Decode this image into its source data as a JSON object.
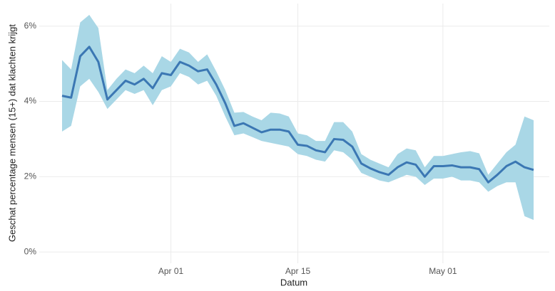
{
  "chart_data": {
    "type": "line",
    "x_label": "Datum",
    "y_label": "Geschat percentage mensen (15+) dat klachten krijgt",
    "x": [
      "Mar 20",
      "Mar 21",
      "Mar 22",
      "Mar 23",
      "Mar 24",
      "Mar 25",
      "Mar 26",
      "Mar 27",
      "Mar 28",
      "Mar 29",
      "Mar 30",
      "Mar 31",
      "Apr 01",
      "Apr 02",
      "Apr 03",
      "Apr 04",
      "Apr 05",
      "Apr 06",
      "Apr 07",
      "Apr 08",
      "Apr 09",
      "Apr 10",
      "Apr 11",
      "Apr 12",
      "Apr 13",
      "Apr 14",
      "Apr 15",
      "Apr 16",
      "Apr 17",
      "Apr 18",
      "Apr 19",
      "Apr 20",
      "Apr 21",
      "Apr 22",
      "Apr 23",
      "Apr 24",
      "Apr 25",
      "Apr 26",
      "Apr 27",
      "Apr 28",
      "Apr 29",
      "Apr 30",
      "May 01",
      "May 02",
      "May 03",
      "May 04",
      "May 05",
      "May 06",
      "May 07",
      "May 08",
      "May 09",
      "May 10",
      "May 11"
    ],
    "series": [
      {
        "color": "#3b77b3",
        "band_color": "#a9d7e6",
        "values": [
          4.15,
          4.1,
          5.2,
          5.45,
          5.05,
          4.05,
          4.3,
          4.55,
          4.45,
          4.6,
          4.35,
          4.75,
          4.7,
          5.05,
          4.95,
          4.8,
          4.85,
          4.45,
          3.95,
          3.35,
          3.42,
          3.3,
          3.18,
          3.25,
          3.25,
          3.2,
          2.85,
          2.82,
          2.7,
          2.65,
          3.0,
          2.98,
          2.8,
          2.35,
          2.22,
          2.12,
          2.05,
          2.25,
          2.38,
          2.32,
          2.0,
          2.28,
          2.28,
          2.3,
          2.25,
          2.25,
          2.2,
          1.85,
          2.05,
          2.28,
          2.4,
          2.25,
          2.18
        ],
        "lower": [
          3.2,
          3.35,
          4.4,
          4.6,
          4.25,
          3.8,
          4.05,
          4.3,
          4.2,
          4.3,
          3.9,
          4.3,
          4.4,
          4.75,
          4.65,
          4.45,
          4.55,
          4.15,
          3.6,
          3.1,
          3.15,
          3.05,
          2.95,
          2.9,
          2.85,
          2.8,
          2.6,
          2.55,
          2.45,
          2.4,
          2.7,
          2.65,
          2.45,
          2.1,
          2.0,
          1.9,
          1.85,
          1.95,
          2.05,
          2.0,
          1.78,
          1.95,
          1.95,
          2.0,
          1.9,
          1.9,
          1.85,
          1.6,
          1.75,
          1.85,
          1.85,
          0.95,
          0.85
        ],
        "upper": [
          5.1,
          4.85,
          6.1,
          6.3,
          5.95,
          4.3,
          4.6,
          4.85,
          4.75,
          4.95,
          4.75,
          5.2,
          5.05,
          5.4,
          5.3,
          5.05,
          5.25,
          4.8,
          4.3,
          3.7,
          3.72,
          3.6,
          3.5,
          3.7,
          3.68,
          3.6,
          3.15,
          3.1,
          2.95,
          2.95,
          3.45,
          3.45,
          3.2,
          2.6,
          2.45,
          2.35,
          2.25,
          2.6,
          2.75,
          2.7,
          2.25,
          2.55,
          2.55,
          2.6,
          2.65,
          2.68,
          2.62,
          2.05,
          2.35,
          2.65,
          2.85,
          3.6,
          3.5
        ]
      }
    ],
    "xticks": [
      "Apr 01",
      "Apr 15",
      "May 01"
    ],
    "ylim": [
      -0.3,
      6.6
    ],
    "yticks": [
      {
        "value": 0,
        "label": "0%"
      },
      {
        "value": 2,
        "label": "2%"
      },
      {
        "value": 4,
        "label": "4%"
      },
      {
        "value": 6,
        "label": "6%"
      }
    ],
    "grid": true
  }
}
